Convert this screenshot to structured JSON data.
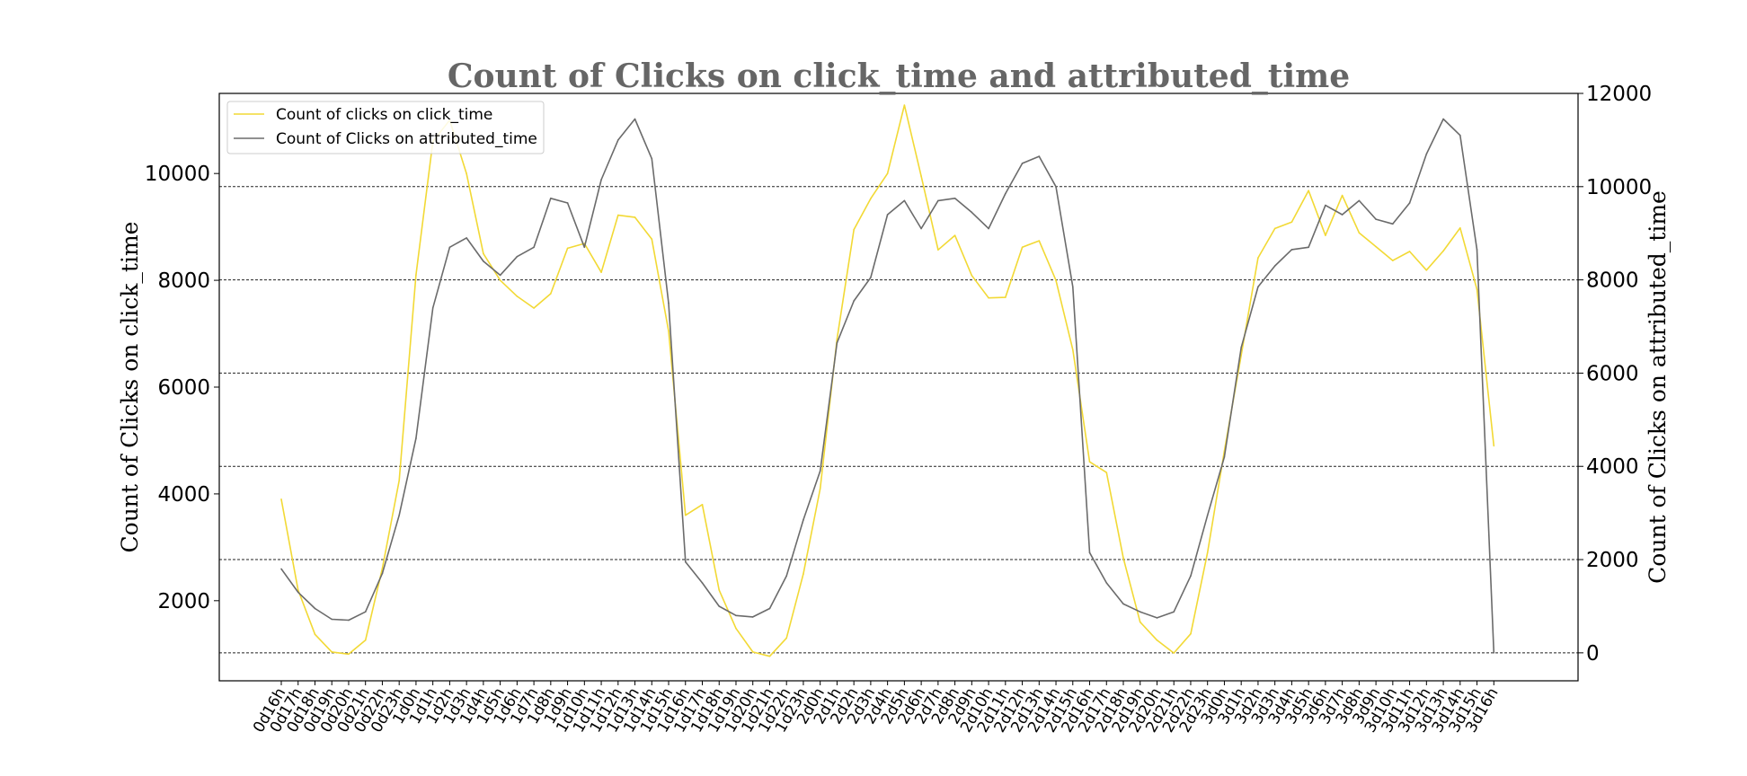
{
  "chart_data": {
    "type": "line",
    "title": "Count of Clicks on click_time and attributed_time",
    "categories": [
      "0d16h",
      "0d17h",
      "0d18h",
      "0d19h",
      "0d20h",
      "0d21h",
      "0d22h",
      "0d23h",
      "1d0h",
      "1d1h",
      "1d2h",
      "1d3h",
      "1d4h",
      "1d5h",
      "1d6h",
      "1d7h",
      "1d8h",
      "1d9h",
      "1d10h",
      "1d11h",
      "1d12h",
      "1d13h",
      "1d14h",
      "1d15h",
      "1d16h",
      "1d17h",
      "1d18h",
      "1d19h",
      "1d20h",
      "1d21h",
      "1d22h",
      "1d23h",
      "2d0h",
      "2d1h",
      "2d2h",
      "2d3h",
      "2d4h",
      "2d5h",
      "2d6h",
      "2d7h",
      "2d8h",
      "2d9h",
      "2d10h",
      "2d11h",
      "2d12h",
      "2d13h",
      "2d14h",
      "2d15h",
      "2d16h",
      "2d17h",
      "2d18h",
      "2d19h",
      "2d20h",
      "2d21h",
      "2d22h",
      "2d23h",
      "3d0h",
      "3d1h",
      "3d2h",
      "3d3h",
      "3d4h",
      "3d5h",
      "3d6h",
      "3d7h",
      "3d8h",
      "3d9h",
      "3d10h",
      "3d11h",
      "3d12h",
      "3d13h",
      "3d14h",
      "3d15h",
      "3d16h"
    ],
    "series": [
      {
        "name": "Count of clicks on click_time",
        "axis": "left",
        "color": "#f2d935",
        "values": [
          3900,
          2200,
          1370,
          1040,
          1000,
          1260,
          2600,
          4250,
          8100,
          10600,
          11000,
          10000,
          8500,
          8000,
          7700,
          7480,
          7750,
          8600,
          8690,
          8150,
          9220,
          9180,
          8770,
          7050,
          3600,
          3800,
          2200,
          1480,
          1040,
          960,
          1300,
          2500,
          4100,
          6900,
          8950,
          9530,
          10000,
          11280,
          9950,
          8570,
          8840,
          8090,
          7670,
          7680,
          8620,
          8740,
          8000,
          6700,
          4600,
          4400,
          2800,
          1600,
          1260,
          1020,
          1380,
          2900,
          4800,
          6600,
          8420,
          8970,
          9090,
          9680,
          8840,
          9590,
          8890,
          8630,
          8370,
          8540,
          8190,
          8550,
          8980,
          7830,
          4900
        ]
      },
      {
        "name": "Count of Clicks on attributed_time",
        "axis": "right",
        "color": "#6b6b6b",
        "values": [
          1800,
          1300,
          950,
          720,
          700,
          880,
          1700,
          2950,
          4600,
          7400,
          8700,
          8900,
          8400,
          8100,
          8500,
          8700,
          9750,
          9650,
          8700,
          10150,
          11000,
          11450,
          10600,
          7500,
          1950,
          1500,
          1000,
          800,
          770,
          950,
          1650,
          2850,
          3900,
          6650,
          7550,
          8050,
          9400,
          9700,
          9100,
          9700,
          9750,
          9450,
          9100,
          9850,
          10500,
          10650,
          10000,
          7850,
          2150,
          1500,
          1050,
          880,
          750,
          880,
          1650,
          2950,
          4200,
          6550,
          7850,
          8300,
          8650,
          8700,
          9600,
          9400,
          9700,
          9300,
          9200,
          9650,
          10700,
          11450,
          11100,
          8650,
          0
        ]
      }
    ],
    "left_axis": {
      "label": "Count of Clicks on click_time",
      "ticks": [
        2000,
        4000,
        6000,
        8000,
        10000
      ],
      "ylim": [
        500,
        11500
      ]
    },
    "right_axis": {
      "label": "Count of Clicks on attributed_time",
      "ticks": [
        0,
        2000,
        4000,
        6000,
        8000,
        10000,
        12000
      ],
      "ylim": [
        -600,
        12000
      ]
    },
    "grid": "horizontal-dashed-at-right-axis-ticks",
    "legend_position": "top-left"
  }
}
